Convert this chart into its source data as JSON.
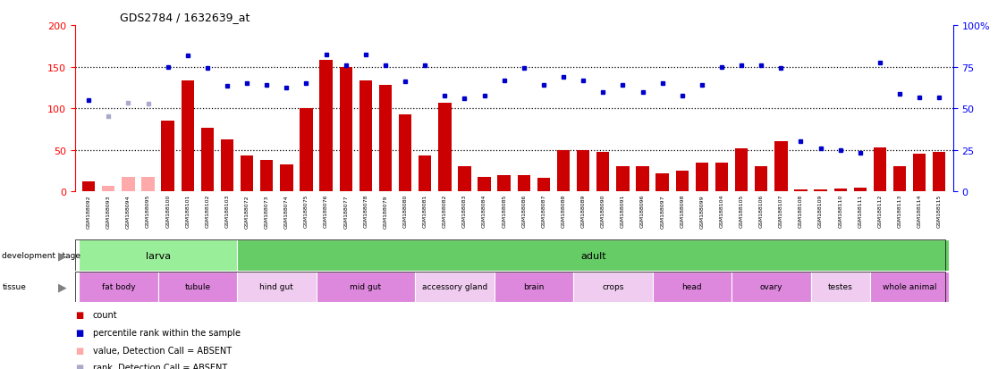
{
  "title": "GDS2784 / 1632639_at",
  "samples": [
    "GSM188092",
    "GSM188093",
    "GSM188094",
    "GSM188095",
    "GSM188100",
    "GSM188101",
    "GSM188102",
    "GSM188103",
    "GSM188072",
    "GSM188073",
    "GSM188074",
    "GSM188075",
    "GSM188076",
    "GSM188077",
    "GSM188078",
    "GSM188079",
    "GSM188080",
    "GSM188081",
    "GSM188082",
    "GSM188083",
    "GSM188084",
    "GSM188085",
    "GSM188086",
    "GSM188087",
    "GSM188088",
    "GSM188089",
    "GSM188090",
    "GSM188091",
    "GSM188096",
    "GSM188097",
    "GSM188098",
    "GSM188099",
    "GSM188104",
    "GSM188105",
    "GSM188106",
    "GSM188107",
    "GSM188108",
    "GSM188109",
    "GSM188110",
    "GSM188111",
    "GSM188112",
    "GSM188113",
    "GSM188114",
    "GSM188115"
  ],
  "counts": [
    12,
    7,
    17,
    17,
    85,
    133,
    77,
    63,
    43,
    38,
    33,
    100,
    158,
    150,
    133,
    128,
    93,
    43,
    107,
    30,
    17,
    20,
    20,
    16,
    50,
    50,
    48,
    30,
    30,
    22,
    25,
    35,
    35,
    52,
    30,
    60,
    2,
    2,
    3,
    5,
    53,
    30,
    45,
    48
  ],
  "absent_count_indices": [
    1,
    2,
    3
  ],
  "ranks": [
    110,
    90,
    107,
    105,
    150,
    163,
    148,
    127,
    130,
    128,
    125,
    130,
    165,
    152,
    165,
    152,
    132,
    152,
    115,
    112,
    115,
    133,
    148,
    128,
    138,
    133,
    120,
    128,
    120,
    130,
    115,
    128,
    150,
    152,
    152,
    148,
    60,
    52,
    50,
    46,
    155,
    117,
    113,
    113
  ],
  "absent_rank_indices": [
    1,
    2,
    3
  ],
  "ylim_left": [
    0,
    200
  ],
  "left_ticks": [
    0,
    50,
    100,
    150,
    200
  ],
  "right_tick_positions": [
    0,
    50,
    100,
    150,
    200
  ],
  "right_tick_labels": [
    "0",
    "25",
    "50",
    "75",
    "100%"
  ],
  "dotted_lines": [
    50,
    100,
    150
  ],
  "bar_color": "#cc0000",
  "absent_bar_color": "#ffaaaa",
  "rank_color": "#0000cc",
  "absent_rank_color": "#aaaacc",
  "development_stages": [
    {
      "label": "larva",
      "start": 0,
      "end": 7,
      "color": "#99ee99"
    },
    {
      "label": "adult",
      "start": 8,
      "end": 43,
      "color": "#66cc66"
    }
  ],
  "tissues": [
    {
      "label": "fat body",
      "start": 0,
      "end": 3,
      "color": "#dd88dd"
    },
    {
      "label": "tubule",
      "start": 4,
      "end": 7,
      "color": "#dd88dd"
    },
    {
      "label": "hind gut",
      "start": 8,
      "end": 11,
      "color": "#f0ccf0"
    },
    {
      "label": "mid gut",
      "start": 12,
      "end": 16,
      "color": "#dd88dd"
    },
    {
      "label": "accessory gland",
      "start": 17,
      "end": 20,
      "color": "#f0ccf0"
    },
    {
      "label": "brain",
      "start": 21,
      "end": 24,
      "color": "#dd88dd"
    },
    {
      "label": "crops",
      "start": 25,
      "end": 28,
      "color": "#f0ccf0"
    },
    {
      "label": "head",
      "start": 29,
      "end": 32,
      "color": "#dd88dd"
    },
    {
      "label": "ovary",
      "start": 33,
      "end": 36,
      "color": "#dd88dd"
    },
    {
      "label": "testes",
      "start": 37,
      "end": 39,
      "color": "#f0ccf0"
    },
    {
      "label": "whole animal",
      "start": 40,
      "end": 43,
      "color": "#dd88dd"
    }
  ],
  "legend_items": [
    {
      "label": "count",
      "color": "#cc0000"
    },
    {
      "label": "percentile rank within the sample",
      "color": "#0000cc"
    },
    {
      "label": "value, Detection Call = ABSENT",
      "color": "#ffaaaa"
    },
    {
      "label": "rank, Detection Call = ABSENT",
      "color": "#aaaacc"
    }
  ],
  "background_color": "#ffffff",
  "xticklabel_bg": "#cccccc"
}
